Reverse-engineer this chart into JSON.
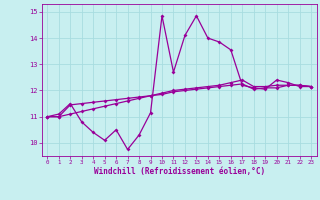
{
  "xlabel": "Windchill (Refroidissement éolien,°C)",
  "xlim": [
    -0.5,
    23.5
  ],
  "ylim": [
    9.5,
    15.3
  ],
  "yticks": [
    10,
    11,
    12,
    13,
    14,
    15
  ],
  "xticks": [
    0,
    1,
    2,
    3,
    4,
    5,
    6,
    7,
    8,
    9,
    10,
    11,
    12,
    13,
    14,
    15,
    16,
    17,
    18,
    19,
    20,
    21,
    22,
    23
  ],
  "background_color": "#c8eff0",
  "grid_color": "#a8dce0",
  "line_color": "#990099",
  "line1_y": [
    11.0,
    11.1,
    11.5,
    10.8,
    10.4,
    10.1,
    10.5,
    9.75,
    10.3,
    11.15,
    14.85,
    12.7,
    14.1,
    14.85,
    14.0,
    13.85,
    13.55,
    12.2,
    12.1,
    12.05,
    12.4,
    12.3,
    12.15,
    12.15
  ],
  "line2_y": [
    11.0,
    11.0,
    11.45,
    11.5,
    11.55,
    11.6,
    11.65,
    11.7,
    11.75,
    11.8,
    11.85,
    11.95,
    12.0,
    12.05,
    12.1,
    12.15,
    12.2,
    12.25,
    12.05,
    12.1,
    12.1,
    12.2,
    12.2,
    12.15
  ],
  "line3_y": [
    11.0,
    11.0,
    11.1,
    11.2,
    11.3,
    11.4,
    11.5,
    11.6,
    11.7,
    11.8,
    11.9,
    12.0,
    12.05,
    12.1,
    12.15,
    12.2,
    12.3,
    12.4,
    12.15,
    12.15,
    12.2,
    12.2,
    12.2,
    12.15
  ]
}
